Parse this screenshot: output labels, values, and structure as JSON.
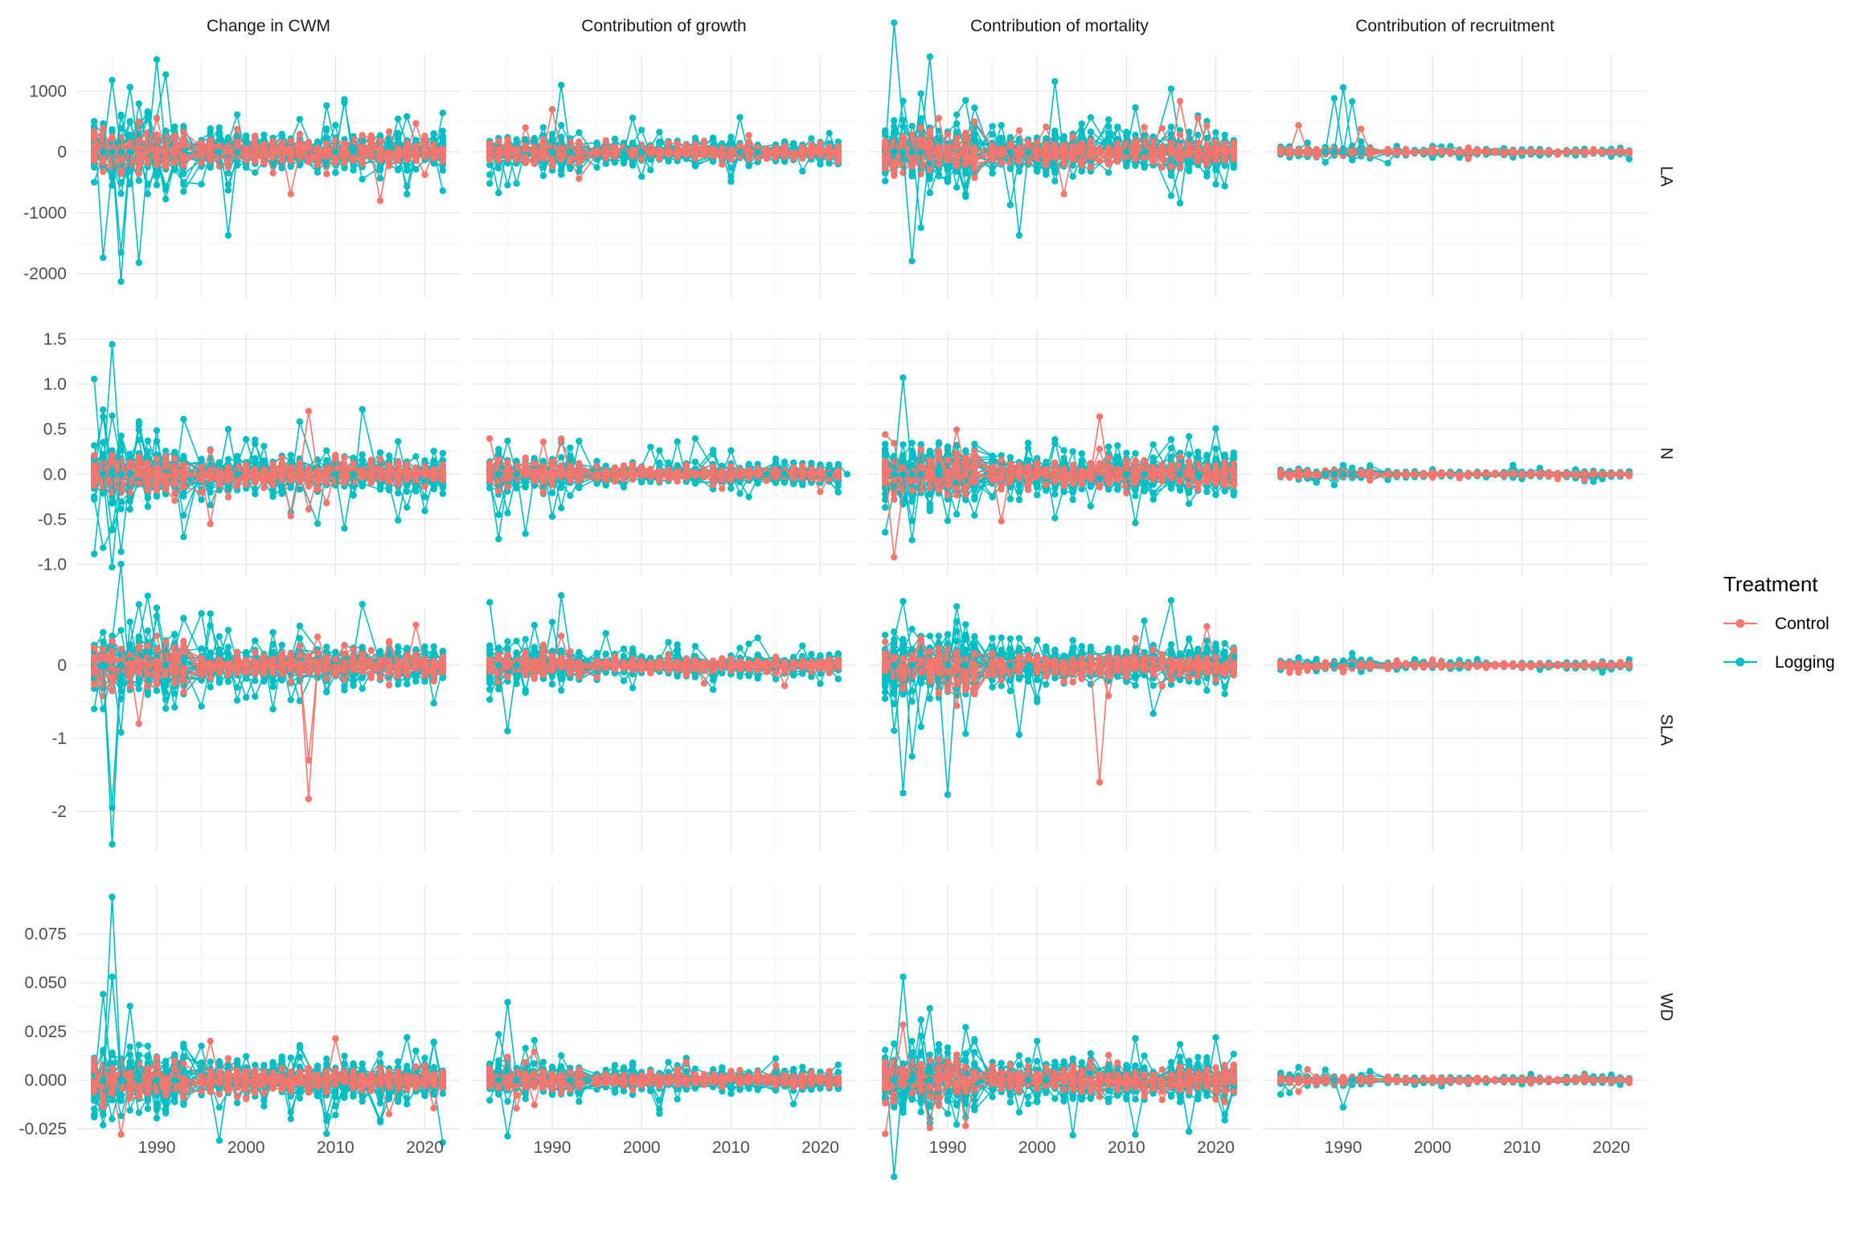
{
  "chart_data": {
    "type": "line",
    "facet_columns": [
      "Change in CWM",
      "Contribution of growth",
      "Contribution of mortality",
      "Contribution of recruitment"
    ],
    "facet_rows": [
      "LA",
      "N",
      "SLA",
      "WD"
    ],
    "x_ticks": [
      1990,
      2000,
      2010,
      2020
    ],
    "xlim": [
      1981,
      2024
    ],
    "rows": [
      {
        "name": "LA",
        "ylim": [
          -2400,
          1600
        ],
        "y_ticks": [
          -2000,
          -1000,
          0,
          1000
        ],
        "y_tick_labels": [
          "-2000",
          "-1000",
          "0",
          "1000"
        ]
      },
      {
        "name": "N",
        "ylim": [
          -1.12,
          1.58
        ],
        "y_ticks": [
          -1.0,
          -0.5,
          0.0,
          0.5,
          1.0,
          1.5
        ],
        "y_tick_labels": [
          "-1.0",
          "-0.5",
          "0.0",
          "0.5",
          "1.0",
          "1.5"
        ]
      },
      {
        "name": "SLA",
        "ylim": [
          -2.55,
          0.78
        ],
        "y_ticks": [
          -2,
          -1,
          0
        ],
        "y_tick_labels": [
          "-2",
          "-1",
          "0"
        ]
      },
      {
        "name": "WD",
        "ylim": [
          -0.025,
          0.1
        ],
        "y_ticks": [
          -0.025,
          0.0,
          0.025,
          0.05,
          0.075
        ],
        "y_tick_labels": [
          "-0.025",
          "0.000",
          "0.025",
          "0.050",
          "0.075"
        ]
      }
    ],
    "years_control": [
      1983,
      1984,
      1985,
      1986,
      1987,
      1988,
      1989,
      1990,
      1991,
      1992,
      1993,
      1995,
      1996,
      1997,
      1998,
      1999,
      2000,
      2001,
      2002,
      2003,
      2004,
      2005,
      2006,
      2007,
      2008,
      2009,
      2010,
      2011,
      2012,
      2013,
      2014,
      2015,
      2016,
      2017,
      2018,
      2019,
      2020,
      2021,
      2022
    ],
    "years_logging": [
      1983,
      1984,
      1985,
      1986,
      1987,
      1988,
      1989,
      1990,
      1991,
      1992,
      1993,
      1995,
      1996,
      1997,
      1998,
      1999,
      2000,
      2001,
      2002,
      2003,
      2004,
      2005,
      2006,
      2008,
      2009,
      2010,
      2011,
      2012,
      2013,
      2015,
      2016,
      2017,
      2018,
      2019,
      2020,
      2021,
      2022
    ],
    "series": [
      {
        "name": "Control",
        "color": "#F8766D"
      },
      {
        "name": "Logging",
        "color": "#00BFC4"
      }
    ],
    "panels": [
      {
        "row": "LA",
        "column": "Change in CWM",
        "n_lines": {
          "Control": 10,
          "Logging": 28
        },
        "extremes": [
          {
            "series": "Logging",
            "year": 1986,
            "value": -2130
          },
          {
            "series": "Logging",
            "year": 1990,
            "value": 1520
          },
          {
            "series": "Logging",
            "year": 1985,
            "value": 1180
          },
          {
            "series": "Logging",
            "year": 1998,
            "value": -1370
          },
          {
            "series": "Logging",
            "year": 2011,
            "value": 810
          },
          {
            "series": "Logging",
            "year": 1986,
            "value": -1650
          },
          {
            "series": "Control",
            "year": 1990,
            "value": 550
          },
          {
            "series": "Control",
            "year": 2019,
            "value": 470
          },
          {
            "series": "Control",
            "year": 2015,
            "value": -800
          },
          {
            "series": "Control",
            "year": 2005,
            "value": -690
          }
        ]
      },
      {
        "row": "LA",
        "column": "Contribution of growth",
        "n_lines": {
          "Control": 10,
          "Logging": 28
        },
        "extremes": [
          {
            "series": "Logging",
            "year": 1991,
            "value": 1100
          },
          {
            "series": "Logging",
            "year": 1999,
            "value": 560
          },
          {
            "series": "Control",
            "year": 1990,
            "value": 700
          },
          {
            "series": "Logging",
            "year": 1991,
            "value": -290
          },
          {
            "series": "Logging",
            "year": 2012,
            "value": -230
          }
        ]
      },
      {
        "row": "LA",
        "column": "Contribution of mortality",
        "n_lines": {
          "Control": 10,
          "Logging": 28
        },
        "extremes": [
          {
            "series": "Logging",
            "year": 1986,
            "value": -1790
          },
          {
            "series": "Logging",
            "year": 1998,
            "value": -1370
          },
          {
            "series": "Logging",
            "year": 1985,
            "value": 840
          },
          {
            "series": "Logging",
            "year": 2011,
            "value": 730
          },
          {
            "series": "Control",
            "year": 2019,
            "value": 430
          },
          {
            "series": "Control",
            "year": 2003,
            "value": -690
          }
        ]
      },
      {
        "row": "LA",
        "column": "Contribution of recruitment",
        "n_lines": {
          "Control": 8,
          "Logging": 20
        },
        "extremes": [
          {
            "series": "Logging",
            "year": 1990,
            "value": 1060
          },
          {
            "series": "Logging",
            "year": 1989,
            "value": 880
          },
          {
            "series": "Logging",
            "year": 1991,
            "value": 830
          },
          {
            "series": "Control",
            "year": 1985,
            "value": 440
          },
          {
            "series": "Control",
            "year": 1992,
            "value": 380
          }
        ]
      },
      {
        "row": "N",
        "column": "Change in CWM",
        "n_lines": {
          "Control": 10,
          "Logging": 28
        },
        "extremes": [
          {
            "series": "Logging",
            "year": 1985,
            "value": 1.44
          },
          {
            "series": "Logging",
            "year": 1985,
            "value": -1.03
          },
          {
            "series": "Logging",
            "year": 1986,
            "value": -0.86
          },
          {
            "series": "Control",
            "year": 2007,
            "value": 0.7
          },
          {
            "series": "Logging",
            "year": 1998,
            "value": 0.5
          },
          {
            "series": "Logging",
            "year": 2011,
            "value": -0.6
          },
          {
            "series": "Control",
            "year": 1996,
            "value": -0.55
          }
        ]
      },
      {
        "row": "N",
        "column": "Contribution of growth",
        "n_lines": {
          "Control": 10,
          "Logging": 28
        },
        "extremes": [
          {
            "series": "Logging",
            "year": 1985,
            "value": 0.37
          },
          {
            "series": "Logging",
            "year": 1985,
            "value": -0.43
          },
          {
            "series": "Logging",
            "year": 2015,
            "value": 0.17
          },
          {
            "series": "Logging",
            "year": 2022,
            "value": 0.11
          }
        ]
      },
      {
        "row": "N",
        "column": "Contribution of mortality",
        "n_lines": {
          "Control": 10,
          "Logging": 28
        },
        "extremes": [
          {
            "series": "Logging",
            "year": 1985,
            "value": 1.07
          },
          {
            "series": "Logging",
            "year": 1986,
            "value": -0.73
          },
          {
            "series": "Control",
            "year": 2007,
            "value": 0.64
          },
          {
            "series": "Logging",
            "year": 2011,
            "value": -0.54
          },
          {
            "series": "Control",
            "year": 1996,
            "value": -0.52
          },
          {
            "series": "Logging",
            "year": 2017,
            "value": 0.42
          }
        ]
      },
      {
        "row": "N",
        "column": "Contribution of recruitment",
        "n_lines": {
          "Control": 8,
          "Logging": 20
        },
        "extremes": [
          {
            "series": "Logging",
            "year": 1990,
            "value": 0.1
          },
          {
            "series": "Logging",
            "year": 1989,
            "value": -0.12
          }
        ]
      },
      {
        "row": "SLA",
        "column": "Change in CWM",
        "n_lines": {
          "Control": 10,
          "Logging": 28
        },
        "extremes": [
          {
            "series": "Logging",
            "year": 1985,
            "value": -2.45
          },
          {
            "series": "Logging",
            "year": 1985,
            "value": -1.95
          },
          {
            "series": "Control",
            "year": 2007,
            "value": -1.83
          },
          {
            "series": "Control",
            "year": 2007,
            "value": -1.3
          },
          {
            "series": "Logging",
            "year": 1990,
            "value": 0.67
          },
          {
            "series": "Control",
            "year": 2019,
            "value": 0.55
          },
          {
            "series": "Control",
            "year": 1988,
            "value": -0.8
          }
        ]
      },
      {
        "row": "SLA",
        "column": "Contribution of growth",
        "n_lines": {
          "Control": 10,
          "Logging": 28
        },
        "extremes": [
          {
            "series": "Logging",
            "year": 1985,
            "value": -0.9
          },
          {
            "series": "Control",
            "year": 1991,
            "value": 0.4
          },
          {
            "series": "Control",
            "year": 2007,
            "value": -0.25
          }
        ]
      },
      {
        "row": "SLA",
        "column": "Contribution of mortality",
        "n_lines": {
          "Control": 10,
          "Logging": 28
        },
        "extremes": [
          {
            "series": "Logging",
            "year": 1985,
            "value": -1.75
          },
          {
            "series": "Control",
            "year": 2007,
            "value": -1.6
          },
          {
            "series": "Logging",
            "year": 1991,
            "value": 0.6
          },
          {
            "series": "Control",
            "year": 2019,
            "value": 0.53
          },
          {
            "series": "Logging",
            "year": 1998,
            "value": -0.95
          }
        ]
      },
      {
        "row": "SLA",
        "column": "Contribution of recruitment",
        "n_lines": {
          "Control": 8,
          "Logging": 20
        },
        "extremes": [
          {
            "series": "Control",
            "year": 1985,
            "value": -0.1
          },
          {
            "series": "Logging",
            "year": 1990,
            "value": 0.06
          }
        ]
      },
      {
        "row": "WD",
        "column": "Change in CWM",
        "n_lines": {
          "Control": 10,
          "Logging": 28
        },
        "extremes": [
          {
            "series": "Logging",
            "year": 1985,
            "value": 0.094
          },
          {
            "series": "Logging",
            "year": 1985,
            "value": 0.053
          },
          {
            "series": "Logging",
            "year": 1987,
            "value": 0.038
          },
          {
            "series": "Logging",
            "year": 1985,
            "value": -0.02
          },
          {
            "series": "Control",
            "year": 1996,
            "value": 0.02
          },
          {
            "series": "Logging",
            "year": 1991,
            "value": -0.017
          }
        ]
      },
      {
        "row": "WD",
        "column": "Contribution of growth",
        "n_lines": {
          "Control": 10,
          "Logging": 28
        },
        "extremes": [
          {
            "series": "Logging",
            "year": 1985,
            "value": 0.04
          },
          {
            "series": "Logging",
            "year": 1993,
            "value": -0.011
          }
        ]
      },
      {
        "row": "WD",
        "column": "Contribution of mortality",
        "n_lines": {
          "Control": 10,
          "Logging": 28
        },
        "extremes": [
          {
            "series": "Logging",
            "year": 1985,
            "value": 0.053
          },
          {
            "series": "Logging",
            "year": 1987,
            "value": 0.031
          },
          {
            "series": "Logging",
            "year": 1985,
            "value": -0.015
          },
          {
            "series": "Logging",
            "year": 2000,
            "value": 0.02
          }
        ]
      },
      {
        "row": "WD",
        "column": "Contribution of recruitment",
        "n_lines": {
          "Control": 8,
          "Logging": 20
        },
        "extremes": [
          {
            "series": "Logging",
            "year": 1990,
            "value": -0.014
          },
          {
            "series": "Control",
            "year": 1985,
            "value": -0.006
          }
        ]
      }
    ]
  },
  "legend": {
    "title": "Treatment",
    "items": [
      {
        "label": "Control",
        "color": "#F8766D"
      },
      {
        "label": "Logging",
        "color": "#00BFC4"
      }
    ]
  }
}
